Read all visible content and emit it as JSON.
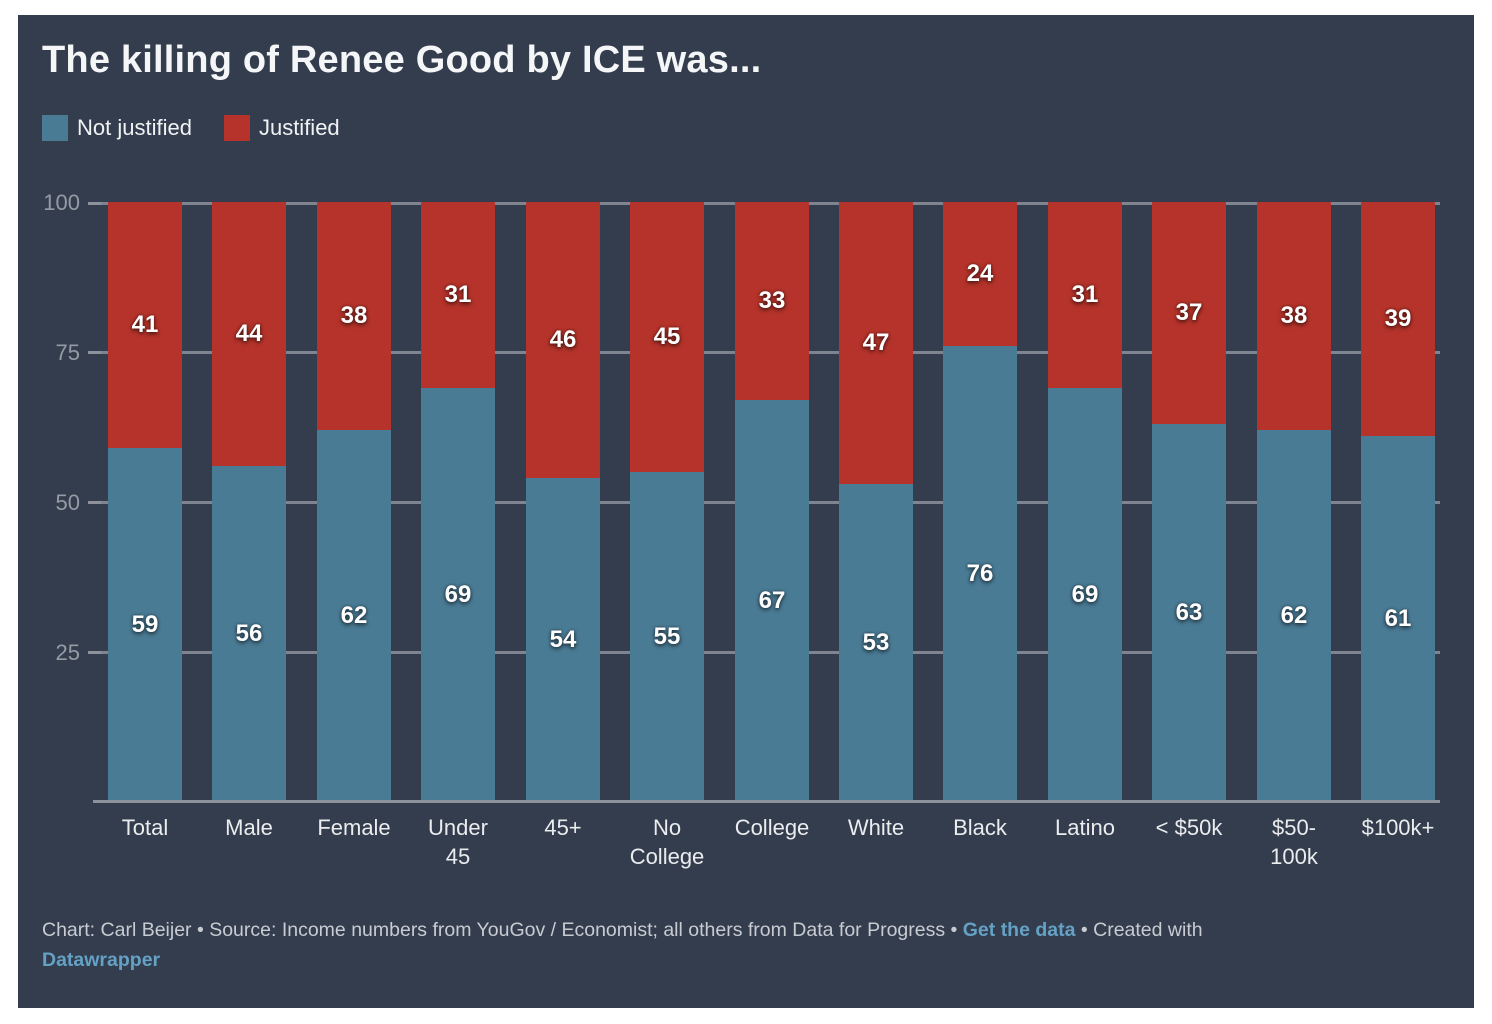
{
  "header": {
    "title": "The killing of Renee Good by ICE was..."
  },
  "colors": {
    "page_border": "#FFFFFF",
    "panel_background": "#333D4D",
    "not_justified": "#4A7B95",
    "justified": "#B5332A",
    "gridline": "#7E8591",
    "axis_line": "#8C919B",
    "axis_text": "#959BA4",
    "category_text": "#EAECEE",
    "value_text": "#FFFFFF",
    "title_text": "#F4F6F7",
    "footer_text": "#C8CCD2",
    "link_text": "#64A1C4"
  },
  "legend": {
    "items": [
      {
        "label": "Not justified",
        "color": "#4A7B95"
      },
      {
        "label": "Justified",
        "color": "#B5332A"
      }
    ]
  },
  "chart_data": {
    "type": "bar",
    "stacked": true,
    "title": "The killing of Renee Good by ICE was...",
    "categories": [
      "Total",
      "Male",
      "Female",
      "Under 45",
      "45+",
      "No College",
      "College",
      "White",
      "Black",
      "Latino",
      "< $50k",
      "$50-100k",
      "$100k+"
    ],
    "category_display": [
      "Total",
      "Male",
      "Female",
      "Under\n45",
      "45+",
      "No\nCollege",
      "College",
      "White",
      "Black",
      "Latino",
      "< $50k",
      "$50-\n100k",
      "$100k+"
    ],
    "series": [
      {
        "name": "Not justified",
        "color": "#4A7B95",
        "values": [
          59,
          56,
          62,
          69,
          54,
          55,
          67,
          53,
          76,
          69,
          63,
          62,
          61
        ]
      },
      {
        "name": "Justified",
        "color": "#B5332A",
        "values": [
          41,
          44,
          38,
          31,
          46,
          45,
          33,
          47,
          24,
          31,
          37,
          38,
          39
        ]
      }
    ],
    "ylim": [
      0,
      100
    ],
    "yticks": [
      25,
      50,
      75,
      100
    ],
    "grid": "horizontal",
    "legend_position": "top-left",
    "value_labels": "inside segments, centered"
  },
  "footer": {
    "lines": [
      [
        {
          "text": "Chart: Carl Beijer • Source: Income numbers from YouGov / Economist; all others from Data for Progress • ",
          "link": false
        },
        {
          "text": "Get the data",
          "link": true,
          "name": "get-the-data-link"
        },
        {
          "text": " • Created with",
          "link": false
        }
      ],
      [
        {
          "text": "Datawrapper",
          "link": true,
          "name": "datawrapper-link"
        }
      ]
    ]
  }
}
